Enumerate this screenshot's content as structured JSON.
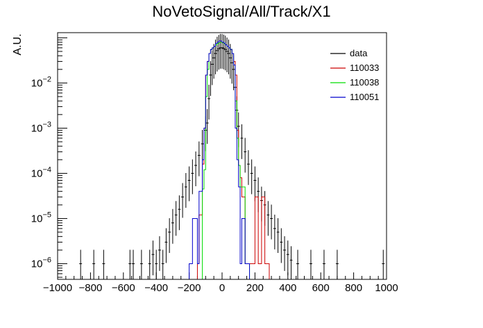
{
  "chart_data": {
    "type": "line",
    "title": "NoVetoSignal/All/Track/X1",
    "xlabel": "",
    "ylabel": "A.U.",
    "xlim": [
      -1000,
      1000
    ],
    "ylim": [
      4.5e-07,
      0.13
    ],
    "yscale": "log",
    "grid": false,
    "legend_position": "top-right",
    "x_ticks": [
      -1000,
      -800,
      -600,
      -400,
      -200,
      0,
      200,
      400,
      600,
      800,
      1000
    ],
    "x_tick_labels": [
      "−1000",
      "−800",
      "−600",
      "−400",
      "−200",
      "0",
      "200",
      "400",
      "600",
      "800",
      "1000"
    ],
    "y_tick_labels": [
      {
        "value": 1e-06,
        "base": "10",
        "exp": "−6"
      },
      {
        "value": 1e-05,
        "base": "10",
        "exp": "−5"
      },
      {
        "value": 0.0001,
        "base": "10",
        "exp": "−4"
      },
      {
        "value": 0.001,
        "base": "10",
        "exp": "−3"
      },
      {
        "value": 0.01,
        "base": "10",
        "exp": "−2"
      }
    ],
    "series": [
      {
        "name": "data",
        "color": "#000000",
        "style": "points",
        "points": [
          [
            -860,
            1e-06
          ],
          [
            -780,
            1e-06
          ],
          [
            -720,
            1e-06
          ],
          [
            -560,
            1e-06
          ],
          [
            -540,
            1e-06
          ],
          [
            -490,
            1e-06
          ],
          [
            -440,
            1e-06
          ],
          [
            -420,
            1.6e-06
          ],
          [
            -400,
            1e-06
          ],
          [
            -380,
            2e-06
          ],
          [
            -360,
            1e-06
          ],
          [
            -340,
            3e-06
          ],
          [
            -320,
            5e-06
          ],
          [
            -300,
            8e-06
          ],
          [
            -280,
            1.2e-05
          ],
          [
            -260,
            1.6e-05
          ],
          [
            -240,
            3e-05
          ],
          [
            -220,
            5e-05
          ],
          [
            -200,
            7e-05
          ],
          [
            -180,
            0.0001
          ],
          [
            -160,
            0.00015
          ],
          [
            -140,
            0.00025
          ],
          [
            -120,
            0.00045
          ],
          [
            -100,
            0.0009
          ],
          [
            -90,
            0.0013
          ],
          [
            -80,
            0.0045
          ],
          [
            -70,
            0.015
          ],
          [
            -60,
            0.026
          ],
          [
            -50,
            0.036
          ],
          [
            -40,
            0.045
          ],
          [
            -30,
            0.052
          ],
          [
            -20,
            0.057
          ],
          [
            -10,
            0.06
          ],
          [
            0,
            0.06
          ],
          [
            10,
            0.058
          ],
          [
            20,
            0.055
          ],
          [
            30,
            0.05
          ],
          [
            40,
            0.045
          ],
          [
            50,
            0.036
          ],
          [
            60,
            0.028
          ],
          [
            70,
            0.02
          ],
          [
            80,
            0.008
          ],
          [
            90,
            0.0025
          ],
          [
            100,
            0.0011
          ],
          [
            120,
            0.0006
          ],
          [
            140,
            0.0003
          ],
          [
            160,
            0.00016
          ],
          [
            180,
            0.0001
          ],
          [
            200,
            7e-05
          ],
          [
            220,
            4e-05
          ],
          [
            240,
            2.5e-05
          ],
          [
            260,
            2e-05
          ],
          [
            280,
            1.2e-05
          ],
          [
            300,
            1e-05
          ],
          [
            320,
            6e-06
          ],
          [
            340,
            5e-06
          ],
          [
            360,
            3e-06
          ],
          [
            380,
            2e-06
          ],
          [
            400,
            1.6e-06
          ],
          [
            420,
            1.2e-06
          ],
          [
            460,
            1e-06
          ],
          [
            540,
            1e-06
          ],
          [
            620,
            1e-06
          ],
          [
            700,
            1e-06
          ],
          [
            980,
            1e-06
          ]
        ]
      },
      {
        "name": "110033",
        "color": "#cc0000",
        "style": "step",
        "step": [
          [
            -150,
            1e-06
          ],
          [
            -140,
            1.2e-05
          ],
          [
            -120,
            0.00016
          ],
          [
            -110,
            0.001
          ],
          [
            -100,
            0.015
          ],
          [
            -90,
            0.03
          ],
          [
            -80,
            0.045
          ],
          [
            -70,
            0.055
          ],
          [
            -60,
            0.06
          ],
          [
            -50,
            0.065
          ],
          [
            -40,
            0.07
          ],
          [
            -30,
            0.075
          ],
          [
            -20,
            0.078
          ],
          [
            -10,
            0.08
          ],
          [
            0,
            0.078
          ],
          [
            10,
            0.074
          ],
          [
            20,
            0.07
          ],
          [
            30,
            0.065
          ],
          [
            40,
            0.06
          ],
          [
            50,
            0.055
          ],
          [
            60,
            0.045
          ],
          [
            70,
            0.03
          ],
          [
            80,
            0.015
          ],
          [
            90,
            0.0009
          ],
          [
            100,
            0.00015
          ],
          [
            110,
            8e-05
          ],
          [
            120,
            3e-05
          ],
          [
            130,
            3e-05
          ],
          [
            140,
            1e-06
          ],
          [
            180,
            1e-06
          ],
          [
            200,
            3e-05
          ],
          [
            220,
            1e-06
          ],
          [
            240,
            3e-05
          ],
          [
            250,
            3e-05
          ],
          [
            260,
            1e-06
          ],
          [
            270,
            1e-06
          ]
        ]
      },
      {
        "name": "110038",
        "color": "#00dd00",
        "style": "step",
        "step": [
          [
            -120,
            4.5e-05
          ],
          [
            -110,
            0.00012
          ],
          [
            -100,
            0.005
          ],
          [
            -90,
            0.02
          ],
          [
            -80,
            0.045
          ],
          [
            -70,
            0.055
          ],
          [
            -60,
            0.06
          ],
          [
            -50,
            0.065
          ],
          [
            -40,
            0.07
          ],
          [
            -30,
            0.075
          ],
          [
            -20,
            0.078
          ],
          [
            -10,
            0.08
          ],
          [
            0,
            0.078
          ],
          [
            10,
            0.074
          ],
          [
            20,
            0.07
          ],
          [
            30,
            0.065
          ],
          [
            40,
            0.06
          ],
          [
            50,
            0.055
          ],
          [
            60,
            0.045
          ],
          [
            70,
            0.025
          ],
          [
            80,
            0.004
          ],
          [
            90,
            0.0006
          ],
          [
            100,
            0.00015
          ],
          [
            110,
            5e-05
          ],
          [
            120,
            5e-05
          ],
          [
            130,
            5e-05
          ],
          [
            140,
            1e-06
          ],
          [
            150,
            1e-06
          ]
        ]
      },
      {
        "name": "110051",
        "color": "#0000cc",
        "style": "step",
        "step": [
          [
            -200,
            1e-06
          ],
          [
            -180,
            1e-05
          ],
          [
            -160,
            1e-05
          ],
          [
            -150,
            1e-06
          ],
          [
            -140,
            4e-05
          ],
          [
            -120,
            0.0002
          ],
          [
            -110,
            0.001
          ],
          [
            -100,
            0.015
          ],
          [
            -90,
            0.03
          ],
          [
            -80,
            0.045
          ],
          [
            -70,
            0.055
          ],
          [
            -60,
            0.06
          ],
          [
            -50,
            0.065
          ],
          [
            -40,
            0.075
          ],
          [
            -30,
            0.08
          ],
          [
            -20,
            0.085
          ],
          [
            -10,
            0.085
          ],
          [
            0,
            0.08
          ],
          [
            10,
            0.076
          ],
          [
            20,
            0.07
          ],
          [
            30,
            0.065
          ],
          [
            40,
            0.06
          ],
          [
            50,
            0.055
          ],
          [
            60,
            0.045
          ],
          [
            70,
            0.025
          ],
          [
            80,
            0.001
          ],
          [
            90,
            0.0002
          ],
          [
            100,
            5e-05
          ],
          [
            110,
            1e-06
          ],
          [
            120,
            1e-05
          ],
          [
            140,
            1e-06
          ],
          [
            150,
            1e-06
          ]
        ]
      }
    ]
  }
}
